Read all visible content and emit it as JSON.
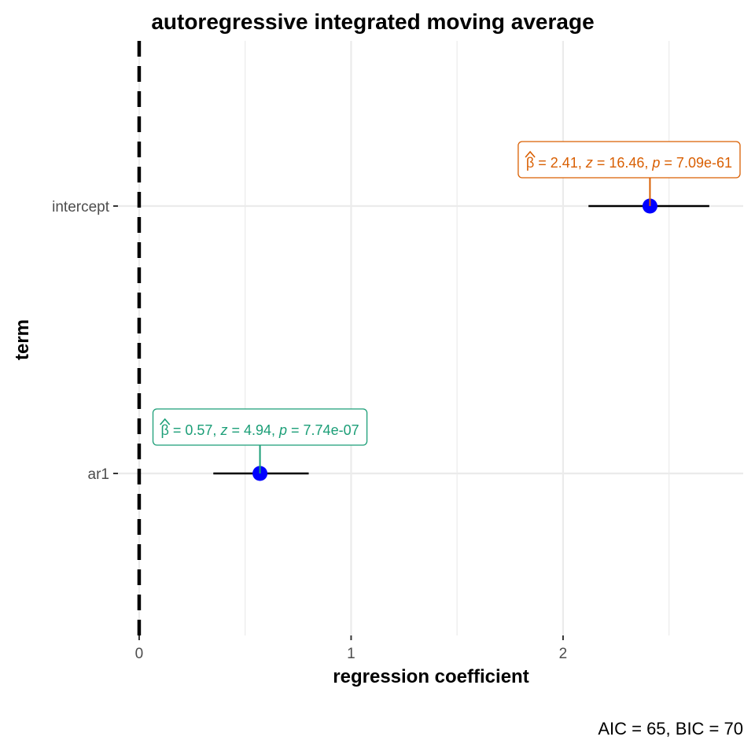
{
  "chart_data": {
    "type": "scatter",
    "title": "autoregressive integrated moving average",
    "xlabel": "regression coefficient",
    "ylabel": "term",
    "caption": "AIC = 65, BIC = 70",
    "xlim": [
      -0.1,
      2.85
    ],
    "x_ticks": [
      0,
      1,
      2
    ],
    "x_tick_labels": [
      "0",
      "1",
      "2"
    ],
    "reference_line": 0,
    "grid": true,
    "point_color": "#0000ff",
    "terms": [
      {
        "term": "ar1",
        "estimate": 0.57,
        "conf_low": 0.35,
        "conf_high": 0.8,
        "label_color": "#1b9e77",
        "label": {
          "beta": "= 0.57,",
          "z_sym": "z",
          "z_val": "= 4.94,",
          "p_sym": "p",
          "p_val": "= 7.74e-07"
        }
      },
      {
        "term": "intercept",
        "estimate": 2.41,
        "conf_low": 2.12,
        "conf_high": 2.69,
        "label_color": "#d95f02",
        "label": {
          "beta": "= 2.41,",
          "z_sym": "z",
          "z_val": "= 16.46,",
          "p_sym": "p",
          "p_val": "= 7.09e-61"
        }
      }
    ]
  }
}
